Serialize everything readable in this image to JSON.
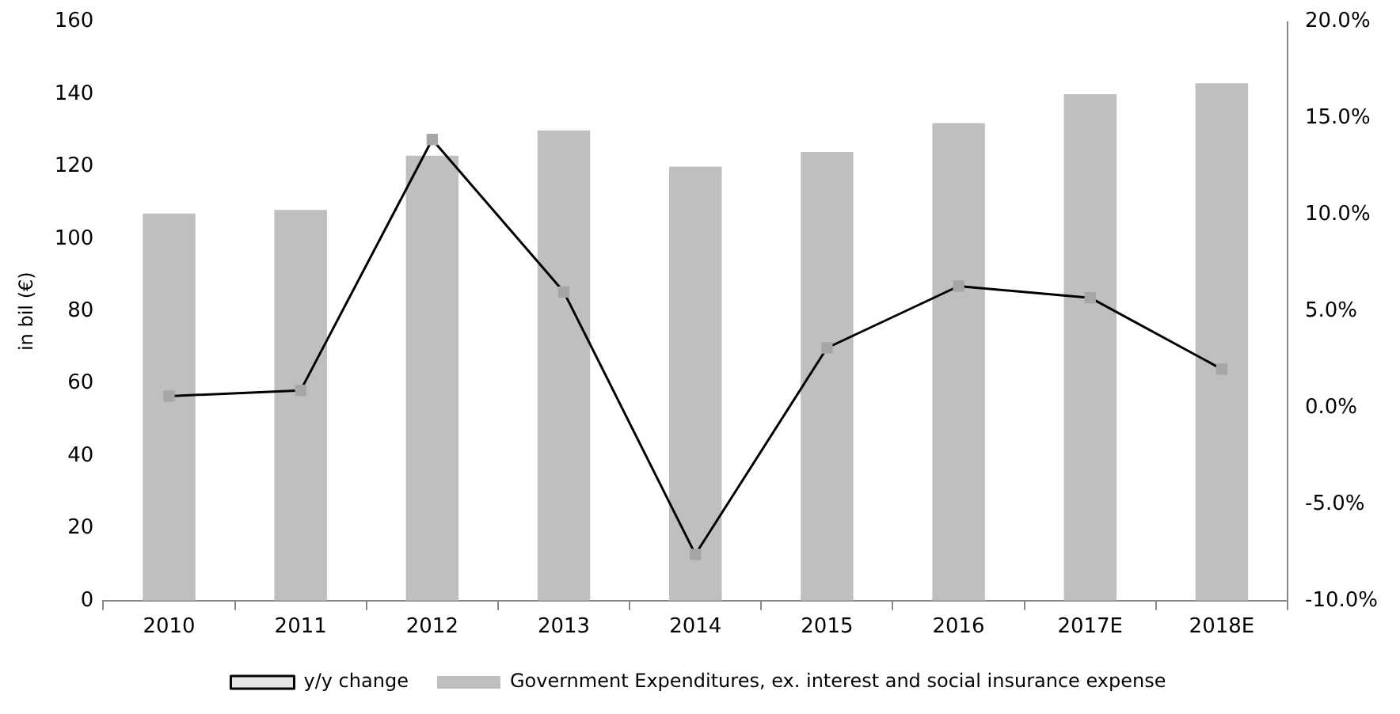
{
  "chart_data": {
    "type": "bar",
    "ylabel": "in bil (€)",
    "categories": [
      "2010",
      "2011",
      "2012",
      "2013",
      "2014",
      "2015",
      "2016",
      "2017E",
      "2018E"
    ],
    "series": [
      {
        "name": "Government Expenditures, ex. interest and social insurance expense",
        "color": "#bfbfbf",
        "values": [
          107,
          108,
          123,
          130,
          120,
          124,
          132,
          140,
          143
        ]
      },
      {
        "name": "y/y change",
        "type": "line",
        "axis": "y2",
        "color": "#000000",
        "values": [
          0.6,
          0.9,
          13.9,
          6.0,
          -7.6,
          3.1,
          6.3,
          5.7,
          2.0
        ]
      }
    ],
    "ylim": [
      0,
      160
    ],
    "yticks": [
      0,
      20,
      40,
      60,
      80,
      100,
      120,
      140,
      160
    ],
    "y2lim": [
      -10,
      20
    ],
    "y2ticks": [
      {
        "value": -10,
        "label": "-10.0%"
      },
      {
        "value": -5,
        "label": "-5.0%"
      },
      {
        "value": 0,
        "label": "0.0%"
      },
      {
        "value": 5,
        "label": "5.0%"
      },
      {
        "value": 10,
        "label": "10.0%"
      },
      {
        "value": 15,
        "label": "15.0%"
      },
      {
        "value": 20,
        "label": "20.0%"
      }
    ],
    "legend": "bottom",
    "marker": "square",
    "grid": false
  }
}
